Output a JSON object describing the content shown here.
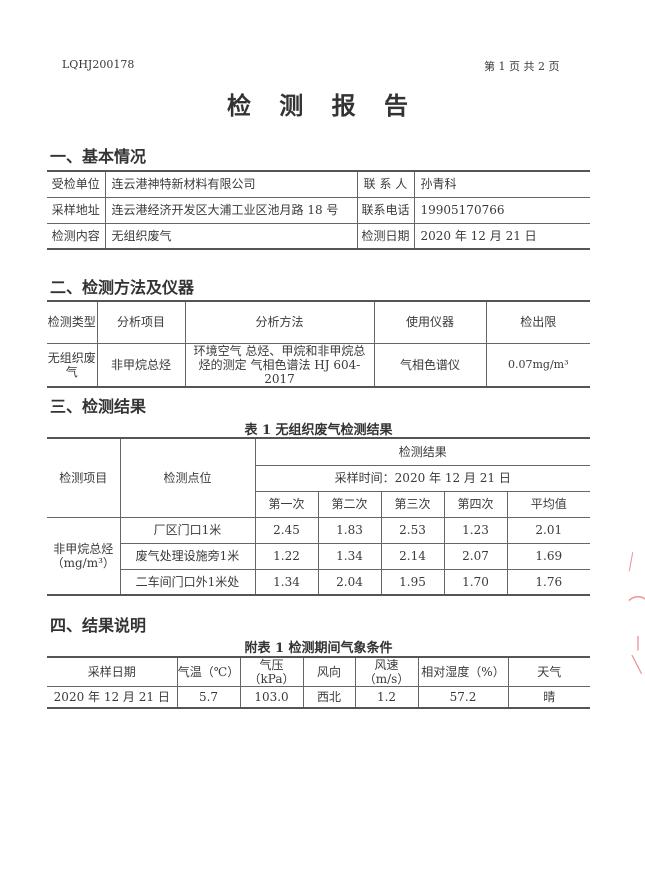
{
  "header": {
    "report_no": "LQHJ200178",
    "page_info": "第 1 页 共 2 页"
  },
  "title": "检 测 报 告",
  "section1": {
    "heading": "一、基本情况",
    "rows": [
      {
        "label": "受检单位",
        "value": "连云港神特新材料有限公司",
        "label2": "联 系 人",
        "value2": "孙青科"
      },
      {
        "label": "采样地址",
        "value": "连云港经济开发区大浦工业区池月路 18 号",
        "label2": "联系电话",
        "value2": "19905170766"
      },
      {
        "label": "检测内容",
        "value": "无组织废气",
        "label2": "检测日期",
        "value2": "2020 年 12 月 21 日"
      }
    ]
  },
  "section2": {
    "heading": "二、检测方法及仪器",
    "headers": [
      "检测类型",
      "分析项目",
      "分析方法",
      "使用仪器",
      "检出限"
    ],
    "row": {
      "type": "无组织废气",
      "item": "非甲烷总烃",
      "method": "环境空气 总烃、甲烷和非甲烷总烃的测定 气相色谱法 HJ 604-2017",
      "instrument": "气相色谱仪",
      "limit": "0.07mg/m³"
    }
  },
  "section3": {
    "heading": "三、检测结果",
    "caption": "表 1 无组织废气检测结果",
    "h_item": "检测项目",
    "h_point": "检测点位",
    "h_result": "检测结果",
    "h_time": "采样时间：2020 年 12 月 21 日",
    "h_cols": [
      "第一次",
      "第二次",
      "第三次",
      "第四次",
      "平均值"
    ],
    "item": "非甲烷总烃（mg/m³）",
    "rows": [
      {
        "point": "厂区门口1米",
        "values": [
          "2.45",
          "1.83",
          "2.53",
          "1.23",
          "2.01"
        ]
      },
      {
        "point": "废气处理设施旁1米",
        "values": [
          "1.22",
          "1.34",
          "2.14",
          "2.07",
          "1.69"
        ]
      },
      {
        "point": "二车间门口外1米处",
        "values": [
          "1.34",
          "2.04",
          "1.95",
          "1.70",
          "1.76"
        ]
      }
    ]
  },
  "section4": {
    "heading": "四、结果说明",
    "caption": "附表 1 检测期间气象条件",
    "headers": [
      "采样日期",
      "气温（℃）",
      "气压（kPa）",
      "风向",
      "风速（m/s）",
      "相对湿度（%）",
      "天气"
    ],
    "row": [
      "2020 年 12 月 21 日",
      "5.7",
      "103.0",
      "西北",
      "1.2",
      "57.2",
      "晴"
    ]
  },
  "stamp_color": "#e04040"
}
